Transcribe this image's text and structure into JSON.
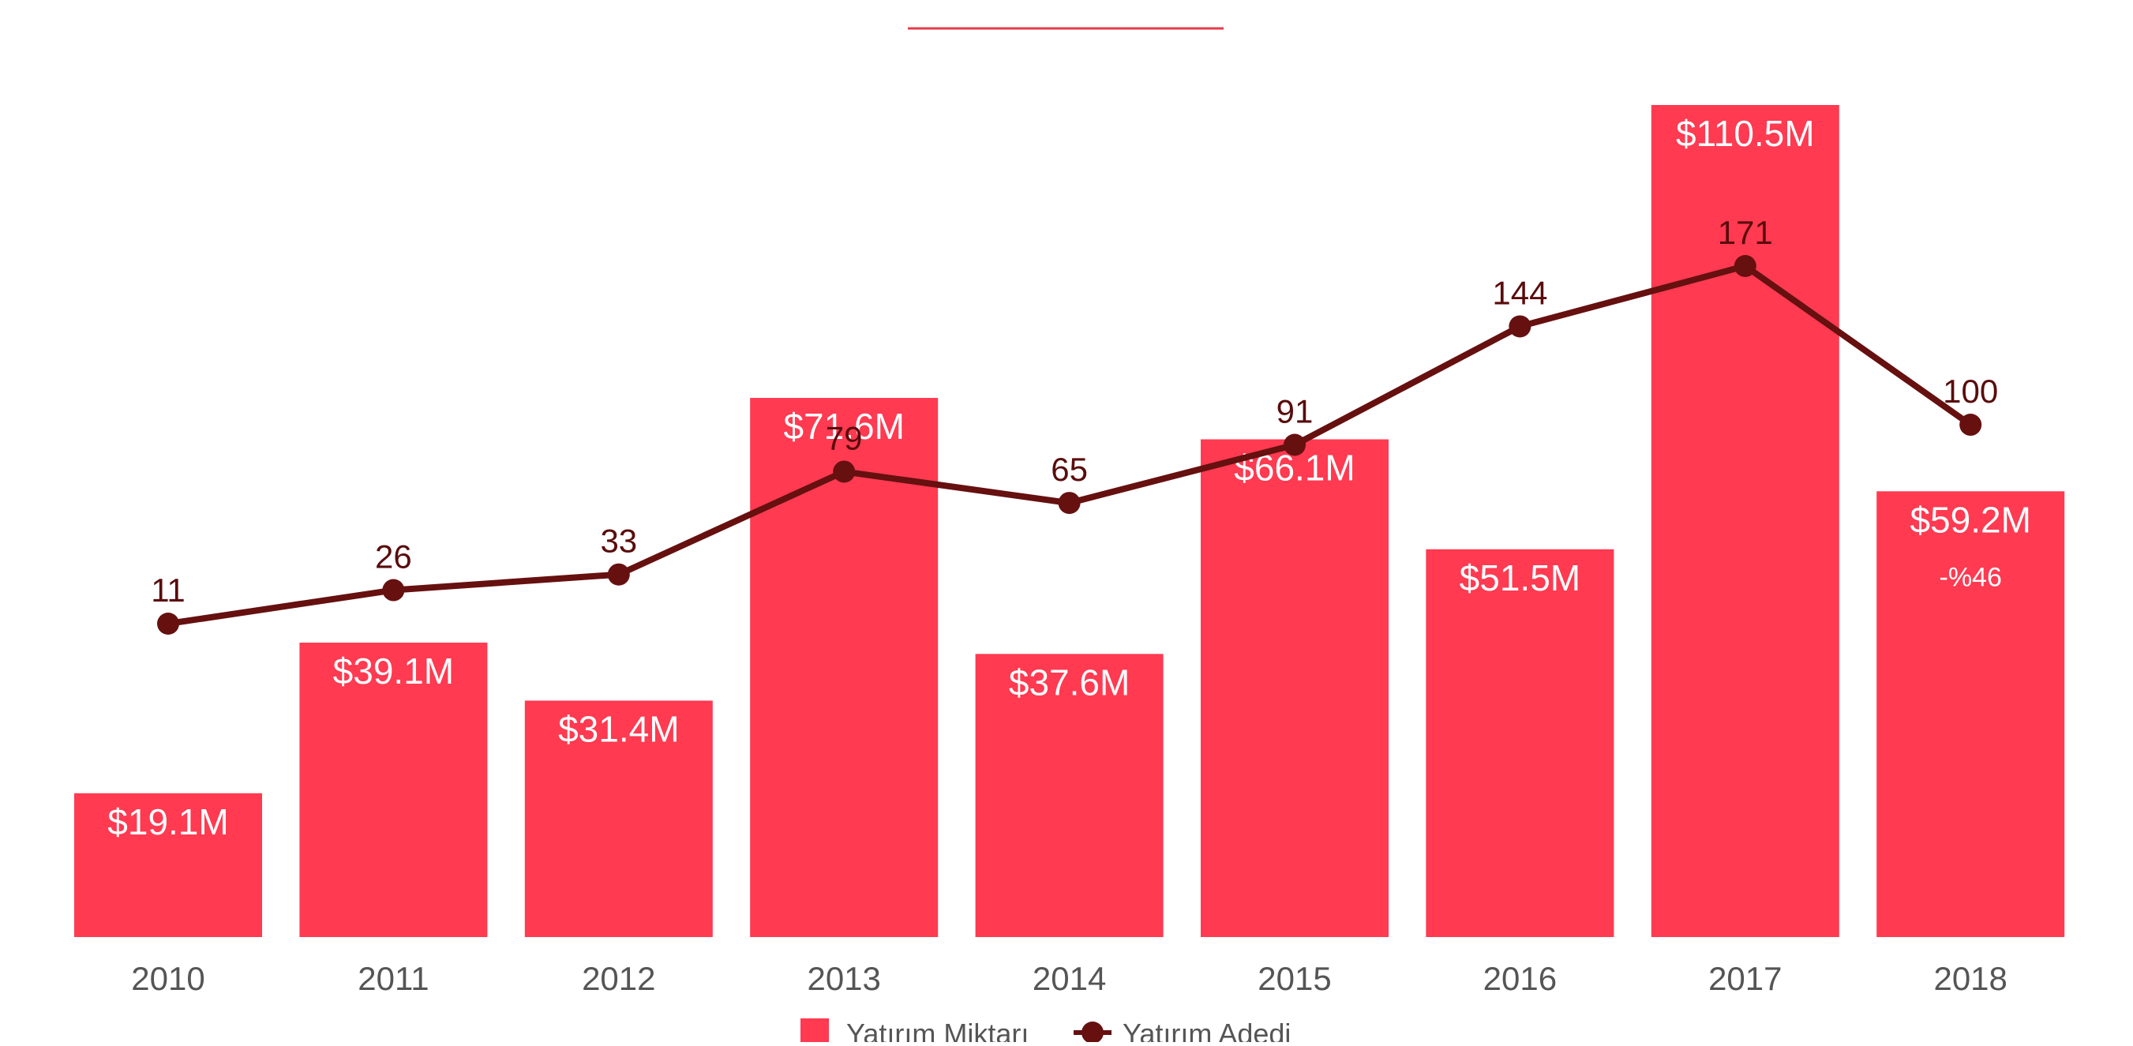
{
  "colors": {
    "bar": "#ff3a51",
    "line": "#661010",
    "bar_label": "#ffffff",
    "line_label": "#5a0c0c",
    "tick_label": "#555555",
    "legend_text": "#555555",
    "accent_rule": "#e53b4a"
  },
  "chart_data": {
    "type": "bar",
    "title": "",
    "xlabel": "",
    "ylabel": "",
    "categories": [
      "2010",
      "2011",
      "2012",
      "2013",
      "2014",
      "2015",
      "2016",
      "2017",
      "2018"
    ],
    "series": [
      {
        "name": "Yatırım Miktarı",
        "type": "bar",
        "values": [
          19.1,
          39.1,
          31.4,
          71.6,
          37.6,
          66.1,
          51.5,
          110.5,
          59.2
        ],
        "labels": [
          "$19.1M",
          "$39.1M",
          "$31.4M",
          "$71.6M",
          "$37.6M",
          "$66.1M",
          "$51.5M",
          "$110.5M",
          "$59.2M"
        ]
      },
      {
        "name": "Yatırım Adedi",
        "type": "line",
        "values": [
          11,
          26,
          33,
          79,
          65,
          91,
          144,
          171,
          100
        ],
        "labels": [
          "11",
          "26",
          "33",
          "79",
          "65",
          "91",
          "144",
          "171",
          "100"
        ]
      }
    ],
    "annotations": [
      {
        "category": "2018",
        "text": "-%46"
      }
    ],
    "ylim_bar": [
      0,
      110.5
    ],
    "grid": false,
    "legend": "bottom-center"
  }
}
